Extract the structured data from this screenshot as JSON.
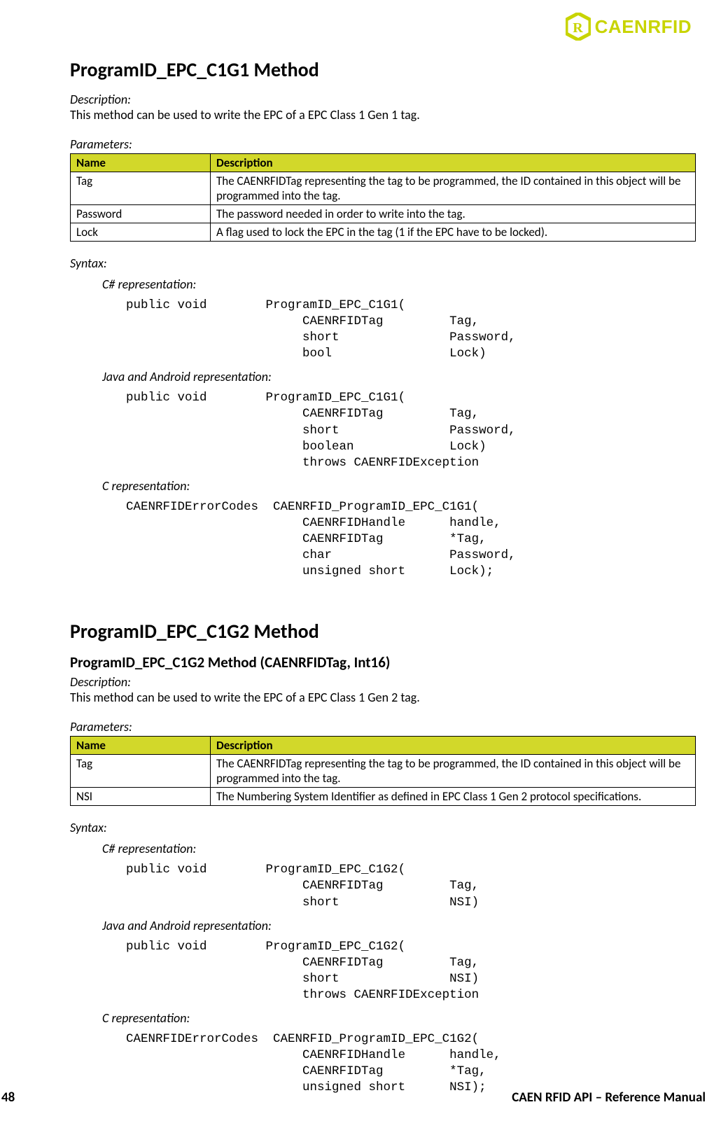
{
  "brand": {
    "name": "CAENRFID",
    "color": "#c8d400"
  },
  "footer": {
    "page": "48",
    "title": "CAEN RFID API – Reference Manual"
  },
  "table_header_bg": "#d2d82a",
  "m1": {
    "title": "ProgramID_EPC_C1G1 Method",
    "desc_label": "Description:",
    "desc_text": "This method can be used to write the EPC of a EPC Class 1 Gen 1 tag.",
    "params_label": "Parameters:",
    "table": {
      "col_name": "Name",
      "col_desc": "Description",
      "rows": [
        {
          "name": "Tag",
          "desc": "The CAENRFIDTag representing the tag to be programmed, the ID contained in this object will be programmed into the tag."
        },
        {
          "name": "Password",
          "desc": "The password needed in order to write into the tag."
        },
        {
          "name": "Lock",
          "desc": "A flag used to lock the EPC in the tag (1 if the EPC have to be locked)."
        }
      ]
    },
    "syntax_label": "Syntax:",
    "csharp_label": "C# representation:",
    "csharp_code": "public void        ProgramID_EPC_C1G1(\n                        CAENRFIDTag         Tag,\n                        short               Password,\n                        bool                Lock)",
    "java_label": "Java and Android representation:",
    "java_code": "public void        ProgramID_EPC_C1G1(\n                        CAENRFIDTag         Tag,\n                        short               Password,\n                        boolean             Lock)\n                        throws CAENRFIDException",
    "c_label": "C representation:",
    "c_code": "CAENRFIDErrorCodes  CAENRFID_ProgramID_EPC_C1G1(\n                        CAENRFIDHandle      handle,\n                        CAENRFIDTag         *Tag,\n                        char                Password,\n                        unsigned short      Lock);"
  },
  "m2": {
    "title": "ProgramID_EPC_C1G2 Method",
    "subtitle": "ProgramID_EPC_C1G2 Method (CAENRFIDTag, Int16)",
    "desc_label": "Description:",
    "desc_text": "This method can be used to write the EPC of a EPC Class 1 Gen 2 tag.",
    "params_label": "Parameters:",
    "table": {
      "col_name": "Name",
      "col_desc": "Description",
      "rows": [
        {
          "name": "Tag",
          "desc": "The CAENRFIDTag representing the tag to be programmed, the ID contained in this object will be programmed into the tag."
        },
        {
          "name": "NSI",
          "desc": "The Numbering System Identifier as defined in EPC Class 1 Gen 2 protocol specifications."
        }
      ]
    },
    "syntax_label": "Syntax:",
    "csharp_label": "C# representation:",
    "csharp_code": "public void        ProgramID_EPC_C1G2(\n                        CAENRFIDTag         Tag,\n                        short               NSI)",
    "java_label": "Java and Android representation:",
    "java_code": "public void        ProgramID_EPC_C1G2(\n                        CAENRFIDTag         Tag,\n                        short               NSI)\n                        throws CAENRFIDException",
    "c_label": "C representation:",
    "c_code": "CAENRFIDErrorCodes  CAENRFID_ProgramID_EPC_C1G2(\n                        CAENRFIDHandle      handle,\n                        CAENRFIDTag         *Tag,\n                        unsigned short      NSI);"
  }
}
